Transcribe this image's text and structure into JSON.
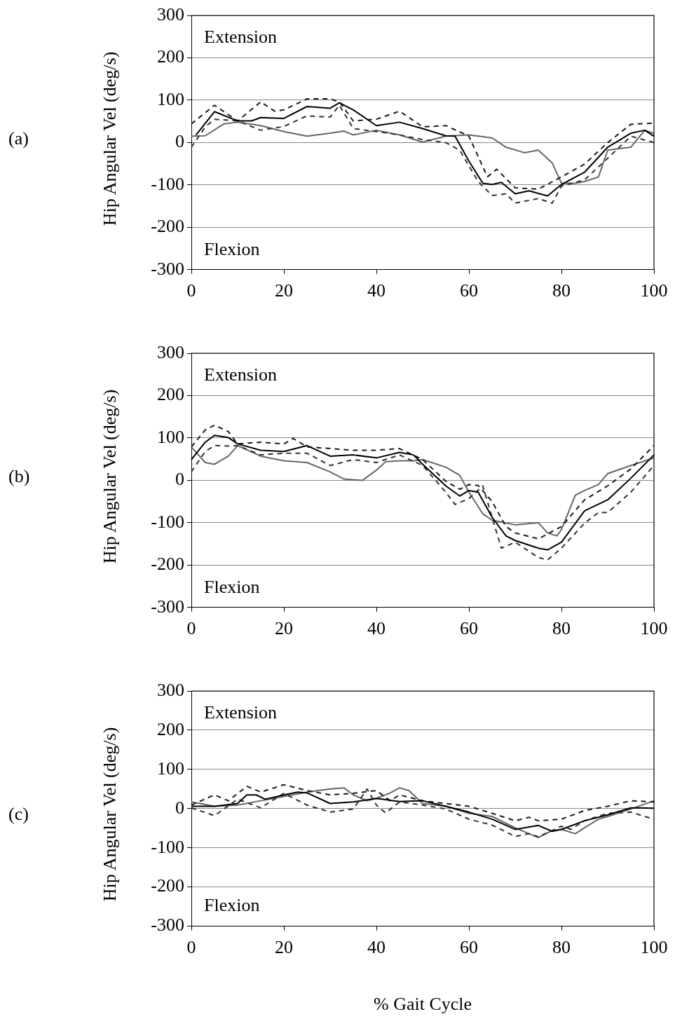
{
  "chart_data": [
    {
      "type": "line",
      "ylabel": "Hip Angular Vel (deg/s)",
      "annotations": [
        "(a)",
        "Extension",
        "Flexion"
      ],
      "xlim": [
        0,
        100
      ],
      "xticks": [
        0,
        20,
        40,
        60,
        80,
        100
      ],
      "ylim": [
        -300,
        300
      ],
      "yticks": [
        -300,
        -200,
        -100,
        0,
        100,
        200,
        300
      ],
      "grid": "y",
      "legend": false,
      "marker": "none",
      "series": [
        {
          "color": "#000000",
          "line_style": "solid",
          "x": [
            1,
            5,
            10,
            13,
            15,
            20,
            25,
            30,
            32,
            35,
            40,
            45,
            50,
            55,
            57,
            60,
            63,
            65,
            67,
            70,
            73,
            75,
            77,
            80,
            85,
            90,
            95,
            98,
            100
          ],
          "values": [
            18,
            73,
            51,
            51,
            59,
            57,
            85,
            81,
            94,
            77,
            40,
            48,
            33,
            16,
            15,
            -44,
            -96,
            -99,
            -94,
            -121,
            -114,
            -120,
            -126,
            -99,
            -70,
            -11,
            22,
            29,
            15
          ]
        },
        {
          "color": "#1a1a1a",
          "line_style": "dashed",
          "x": [
            0,
            5,
            10,
            15,
            18,
            20,
            25,
            30,
            32,
            35,
            40,
            45,
            50,
            55,
            60,
            64,
            66,
            70,
            75,
            80,
            85,
            90,
            95,
            100
          ],
          "values": [
            44,
            88,
            51,
            96,
            74,
            77,
            103,
            103,
            96,
            51,
            55,
            74,
            37,
            40,
            15,
            -81,
            -63,
            -107,
            -110,
            -81,
            -51,
            0,
            43,
            46
          ]
        },
        {
          "color": "#333333",
          "line_style": "dashed",
          "x": [
            0,
            3,
            5,
            10,
            15,
            20,
            25,
            30,
            32,
            35,
            40,
            45,
            50,
            55,
            58,
            62,
            65,
            68,
            70,
            75,
            78,
            80,
            85,
            90,
            95,
            100
          ],
          "values": [
            -11,
            37,
            55,
            51,
            29,
            38,
            63,
            60,
            88,
            33,
            26,
            18,
            7,
            0,
            -18,
            -92,
            -125,
            -121,
            -143,
            -132,
            -143,
            -103,
            -88,
            -37,
            15,
            0
          ]
        },
        {
          "color": "#666666",
          "line_style": "solid",
          "x": [
            0,
            3,
            7,
            10,
            15,
            20,
            25,
            30,
            33,
            35,
            40,
            45,
            50,
            55,
            60,
            65,
            68,
            72,
            75,
            78,
            80,
            83,
            85,
            88,
            90,
            95,
            98,
            100
          ],
          "values": [
            15,
            16,
            44,
            48,
            40,
            26,
            15,
            22,
            27,
            18,
            29,
            18,
            1,
            15,
            18,
            11,
            -11,
            -24,
            -18,
            -48,
            -96,
            -96,
            -92,
            -81,
            -18,
            -11,
            29,
            22
          ]
        }
      ]
    },
    {
      "type": "line",
      "ylabel": "Hip Angular Vel (deg/s)",
      "annotations": [
        "(b)",
        "Extension",
        "Flexion"
      ],
      "xlim": [
        0,
        100
      ],
      "xticks": [
        0,
        20,
        40,
        60,
        80,
        100
      ],
      "ylim": [
        -300,
        300
      ],
      "yticks": [
        -300,
        -200,
        -100,
        0,
        100,
        200,
        300
      ],
      "grid": "y",
      "legend": false,
      "marker": "none",
      "series": [
        {
          "color": "#000000",
          "line_style": "solid",
          "x": [
            0,
            3,
            5,
            8,
            10,
            15,
            20,
            25,
            30,
            35,
            40,
            45,
            48,
            50,
            55,
            58,
            60,
            62,
            65,
            68,
            70,
            75,
            77,
            80,
            85,
            90,
            95,
            100
          ],
          "values": [
            49,
            90,
            106,
            101,
            86,
            71,
            68,
            82,
            57,
            60,
            53,
            66,
            60,
            38,
            -13,
            -37,
            -24,
            -28,
            -87,
            -131,
            -142,
            -160,
            -164,
            -146,
            -72,
            -46,
            5,
            60
          ]
        },
        {
          "color": "#1a1a1a",
          "line_style": "dashed",
          "x": [
            0,
            3,
            5,
            8,
            10,
            15,
            20,
            22,
            25,
            30,
            35,
            40,
            45,
            50,
            55,
            58,
            60,
            62,
            65,
            68,
            70,
            75,
            80,
            85,
            90,
            95,
            100
          ],
          "values": [
            79,
            119,
            130,
            115,
            86,
            90,
            86,
            99,
            79,
            75,
            71,
            71,
            75,
            49,
            -2,
            -21,
            -10,
            -12,
            -50,
            -109,
            -124,
            -138,
            -109,
            -46,
            -13,
            27,
            82
          ]
        },
        {
          "color": "#333333",
          "line_style": "dashed",
          "x": [
            0,
            3,
            5,
            8,
            10,
            15,
            20,
            25,
            30,
            35,
            40,
            45,
            50,
            55,
            57,
            60,
            63,
            65,
            67,
            70,
            75,
            77,
            80,
            85,
            88,
            90,
            95,
            100
          ],
          "values": [
            20,
            68,
            82,
            81,
            82,
            60,
            64,
            64,
            35,
            49,
            42,
            60,
            35,
            -28,
            -57,
            -43,
            -13,
            -87,
            -160,
            -146,
            -182,
            -188,
            -160,
            -101,
            -76,
            -76,
            -28,
            35
          ]
        },
        {
          "color": "#666666",
          "line_style": "solid",
          "x": [
            0,
            3,
            5,
            8,
            10,
            15,
            20,
            25,
            30,
            33,
            37,
            40,
            42,
            45,
            48,
            50,
            55,
            58,
            60,
            63,
            65,
            70,
            75,
            77,
            79,
            80,
            83,
            85,
            88,
            90,
            95,
            100
          ],
          "values": [
            79,
            42,
            38,
            57,
            82,
            57,
            46,
            42,
            20,
            3,
            0,
            24,
            44,
            46,
            46,
            49,
            31,
            12,
            -28,
            -79,
            -94,
            -105,
            -100,
            -124,
            -131,
            -116,
            -35,
            -24,
            -10,
            16,
            35,
            53
          ]
        }
      ]
    },
    {
      "type": "line",
      "xlabel": "% Gait Cycle",
      "ylabel": "Hip Angular Vel (deg/s)",
      "annotations": [
        "(c)",
        "Extension",
        "Flexion"
      ],
      "xlim": [
        0,
        100
      ],
      "xticks": [
        0,
        20,
        40,
        60,
        80,
        100
      ],
      "ylim": [
        -300,
        300
      ],
      "yticks": [
        -300,
        -200,
        -100,
        0,
        100,
        200,
        300
      ],
      "grid": "y",
      "legend": false,
      "marker": "none",
      "series": [
        {
          "color": "#000000",
          "line_style": "solid",
          "x": [
            0,
            5,
            10,
            12,
            14,
            16,
            20,
            23,
            25,
            30,
            35,
            40,
            45,
            50,
            55,
            60,
            65,
            70,
            75,
            78,
            80,
            85,
            90,
            95,
            97,
            100
          ],
          "values": [
            6,
            6,
            13,
            35,
            35,
            24,
            35,
            42,
            40,
            13,
            17,
            26,
            18,
            20,
            6,
            -9,
            -27,
            -53,
            -43,
            -58,
            -53,
            -31,
            -16,
            2,
            2,
            1
          ]
        },
        {
          "color": "#1a1a1a",
          "line_style": "dashed",
          "x": [
            0,
            5,
            8,
            12,
            15,
            20,
            25,
            30,
            35,
            40,
            43,
            45,
            50,
            55,
            60,
            65,
            70,
            73,
            75,
            80,
            85,
            90,
            95,
            100
          ],
          "values": [
            9,
            35,
            20,
            57,
            42,
            61,
            46,
            35,
            39,
            46,
            20,
            35,
            20,
            13,
            6,
            -12,
            -31,
            -22,
            -31,
            -27,
            -5,
            6,
            20,
            17
          ]
        },
        {
          "color": "#333333",
          "line_style": "dashed",
          "x": [
            0,
            5,
            7,
            10,
            15,
            20,
            25,
            30,
            35,
            38,
            40,
            42,
            45,
            50,
            55,
            60,
            65,
            70,
            73,
            75,
            80,
            82,
            85,
            90,
            95,
            100
          ],
          "values": [
            2,
            -18,
            -1,
            24,
            2,
            39,
            9,
            -9,
            -1,
            50,
            9,
            -11,
            17,
            9,
            -1,
            -27,
            -42,
            -71,
            -64,
            -72,
            -45,
            -53,
            -31,
            -12,
            -9,
            -27
          ]
        },
        {
          "color": "#666666",
          "line_style": "solid",
          "x": [
            0,
            5,
            10,
            15,
            20,
            25,
            30,
            33,
            35,
            38,
            40,
            43,
            45,
            47,
            50,
            55,
            60,
            65,
            70,
            75,
            78,
            80,
            83,
            85,
            88,
            90,
            95,
            100
          ],
          "values": [
            17,
            6,
            9,
            20,
            31,
            42,
            50,
            53,
            35,
            20,
            26,
            40,
            53,
            46,
            13,
            6,
            -12,
            -20,
            -49,
            -74,
            -56,
            -53,
            -64,
            -49,
            -27,
            -20,
            -1,
            20
          ]
        }
      ]
    }
  ]
}
